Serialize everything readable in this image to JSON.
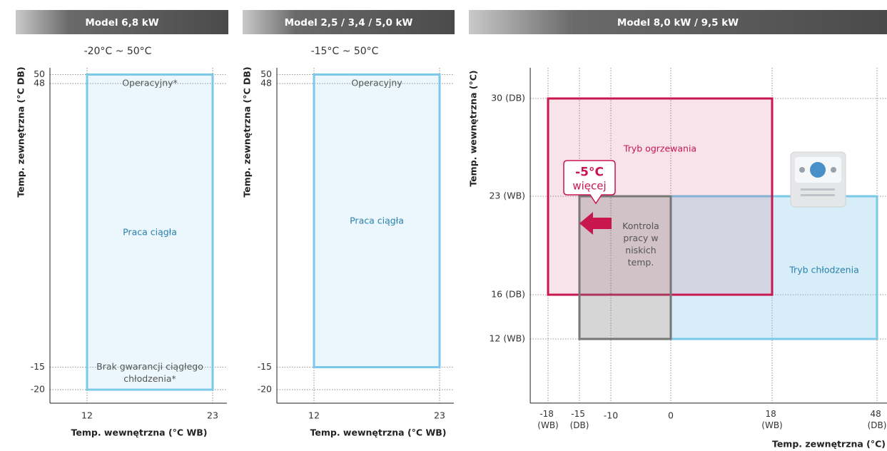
{
  "chart_data": [
    {
      "type": "region",
      "title": "Model 6,8 kW",
      "subtitle": "-20°C ~ 50°C",
      "ylabel": "Temp. zewnętrzna (°C DB)",
      "xlabel": "Temp. wewnętrzna (°C WB)",
      "xlim": [
        8.75,
        24.25
      ],
      "ylim": [
        -23,
        51.5
      ],
      "xticks": [
        12,
        23
      ],
      "yticks": [
        50,
        48,
        -15,
        -20
      ],
      "regions": [
        {
          "label": "Praca ciągła",
          "x": [
            12,
            23
          ],
          "y": [
            -20,
            50
          ],
          "color": "#7cc8e8"
        }
      ],
      "annotations": [
        "Operacyjny*",
        "Brak gwarancji ciągłego chłodzenia*"
      ]
    },
    {
      "type": "region",
      "title": "Model 2,5 / 3,4 / 5,0 kW",
      "subtitle": "-15°C ~ 50°C",
      "ylabel": "Temp. zewnętrzna (°C DB)",
      "xlabel": "Temp. wewnętrzna (°C WB)",
      "xlim": [
        8.75,
        24.25
      ],
      "ylim": [
        -23,
        51.5
      ],
      "xticks": [
        12,
        23
      ],
      "yticks": [
        50,
        48,
        -15,
        -20
      ],
      "regions": [
        {
          "label": "Praca ciągła",
          "x": [
            12,
            23
          ],
          "y": [
            -15,
            50
          ],
          "color": "#7cc8e8"
        }
      ],
      "annotations": [
        "Operacyjny"
      ]
    },
    {
      "type": "region",
      "title": "Model 8,0 kW / 9,5 kW",
      "ylabel": "Temp. wewnętrzna (°C)",
      "xlabel": "Temp. zewnętrzna (°C)",
      "xlim": [
        -19.7,
        50.9
      ],
      "ylim": [
        6.2,
        32.2
      ],
      "xticks": [
        {
          "value": -18,
          "label": "-18 (WB)"
        },
        {
          "value": -15,
          "label": "-15 (DB)"
        },
        -10,
        0,
        {
          "value": 18,
          "label": "18 (WB)"
        },
        {
          "value": 48,
          "label": "48 (DB)"
        }
      ],
      "yticks": [
        {
          "value": 30,
          "label": "30 (DB)"
        },
        {
          "value": 23,
          "label": "23 (WB)"
        },
        {
          "value": 16,
          "label": "16 (DB)"
        },
        {
          "value": 12,
          "label": "12 (WB)"
        }
      ],
      "regions": [
        {
          "label": "Tryb chłodzenia",
          "x": [
            0,
            48
          ],
          "y": [
            12,
            23
          ],
          "color": "#7cc8e8"
        },
        {
          "label": "Tryb ogrzewania",
          "x": [
            -18,
            18
          ],
          "y": [
            16,
            30
          ],
          "color": "#c8174f"
        },
        {
          "label": "Kontrola pracy w niskich temp.",
          "x": [
            -15,
            0
          ],
          "y": [
            12,
            23
          ],
          "color": "#777777"
        }
      ],
      "annotations": [
        "-5°C",
        "więcej"
      ]
    }
  ]
}
